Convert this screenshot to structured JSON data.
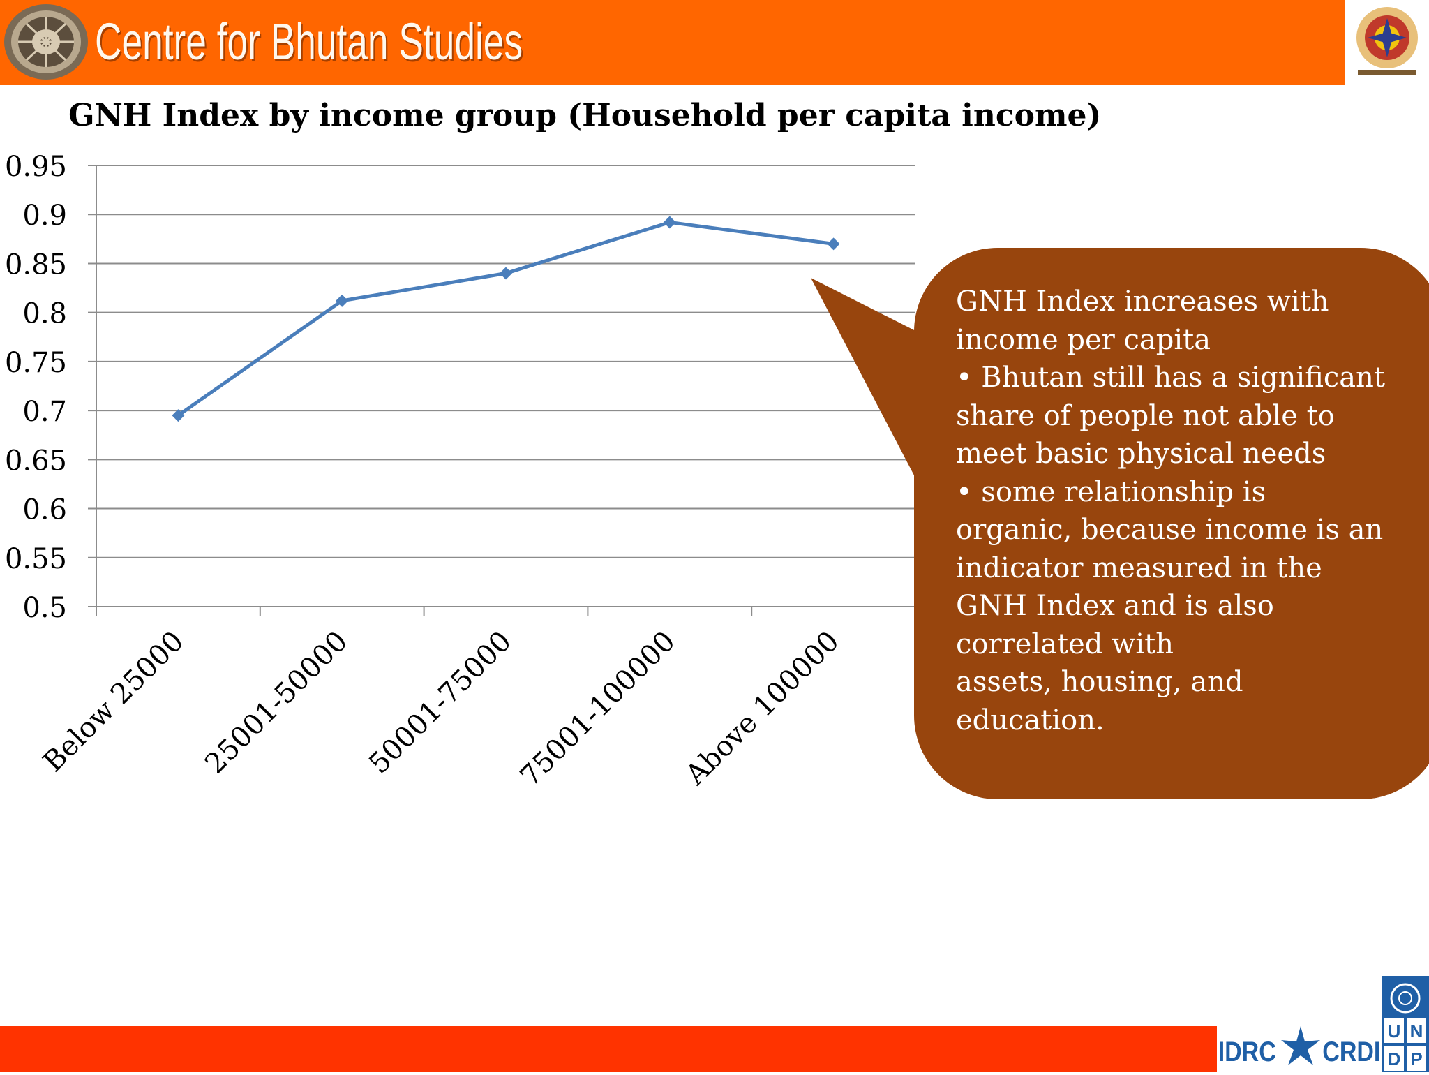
{
  "header": {
    "title": "Centre for Bhutan Studies"
  },
  "chart_data": {
    "type": "line",
    "title": "GNH Index by income group (Household per capita income)",
    "categories": [
      "Below 25000",
      "25001-50000",
      "50001-75000",
      "75001-100000",
      "Above 100000"
    ],
    "series": [
      {
        "values": [
          0.695,
          0.812,
          0.84,
          0.892,
          0.87
        ]
      }
    ],
    "yticks": [
      "0.5",
      "0.55",
      "0.6",
      "0.65",
      "0.7",
      "0.75",
      "0.8",
      "0.85",
      "0.9",
      "0.95"
    ],
    "ylim": [
      0.5,
      0.95
    ],
    "grid": true,
    "line_color": "#4a7ebb",
    "grid_color": "#8c8c8c"
  },
  "callout": {
    "lines": [
      "GNH Index increases with",
      "income per capita",
      "• Bhutan still has a significant",
      "share of people not able to",
      "meet basic physical needs",
      "• some relationship is",
      "organic, because income is an",
      "indicator measured in the",
      "GNH Index and is also",
      "correlated with",
      "assets, housing, and",
      "education."
    ],
    "color": "#98450d"
  },
  "footer": {
    "idrc_left": "IDRC",
    "idrc_right": "CRDI",
    "undp": [
      "U",
      "N",
      "D",
      "P"
    ],
    "bar_color": "#ff3300"
  }
}
